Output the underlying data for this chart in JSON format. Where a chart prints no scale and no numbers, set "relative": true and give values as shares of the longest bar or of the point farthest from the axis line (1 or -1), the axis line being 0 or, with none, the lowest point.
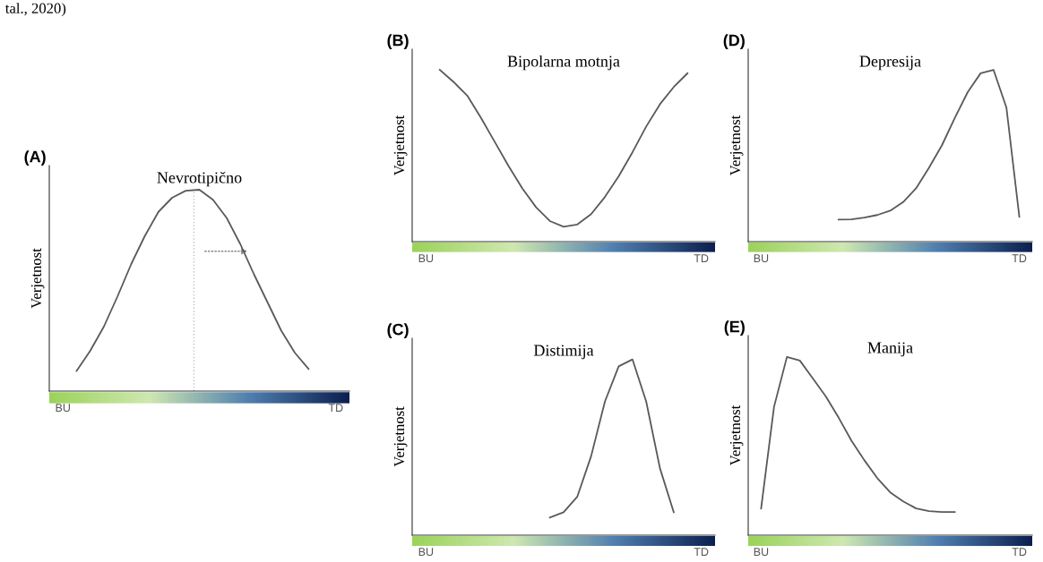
{
  "chart_data": [
    {
      "type": "line",
      "relative": true,
      "title": "Nevrotipično",
      "ylabel": "Verjetnost",
      "annotations": [
        "(A)",
        "tal., 2020)"
      ],
      "categories": [
        "BU",
        null,
        null,
        null,
        null,
        null,
        null,
        null,
        null,
        null,
        null,
        null,
        null,
        null,
        null,
        null,
        null,
        null,
        null,
        null,
        "TD"
      ],
      "grid": false,
      "legend": false,
      "marker": "none",
      "line_style": "solid",
      "tick_labels": "x",
      "series": [
        {
          "color": "#595959",
          "values": [
            null,
            0.1,
            0.2,
            0.32,
            0.47,
            0.63,
            0.77,
            0.89,
            0.96,
            0.995,
            1,
            0.95,
            0.86,
            0.73,
            0.58,
            0.44,
            0.3,
            0.19,
            0.11,
            null,
            null
          ]
        }
      ]
    },
    {
      "type": "line",
      "relative": true,
      "title": "Bipolarna motnja",
      "ylabel": "Verjetnost",
      "annotations": [
        "(B)"
      ],
      "categories": [
        "BU",
        null,
        null,
        null,
        null,
        null,
        null,
        null,
        null,
        null,
        null,
        null,
        null,
        null,
        null,
        null,
        null,
        null,
        null,
        null,
        "TD"
      ],
      "grid": false,
      "legend": false,
      "marker": "none",
      "line_style": "solid",
      "tick_labels": "x",
      "series": [
        {
          "color": "#595959",
          "values": [
            null,
            1,
            0.93,
            0.85,
            0.72,
            0.58,
            0.44,
            0.31,
            0.2,
            0.12,
            0.087,
            0.1,
            0.16,
            0.26,
            0.38,
            0.52,
            0.67,
            0.8,
            0.9,
            0.98,
            null
          ]
        }
      ]
    },
    {
      "type": "line",
      "relative": true,
      "title": "Depresija",
      "ylabel": "Verjetnost",
      "annotations": [
        "(D)"
      ],
      "categories": [
        "BU",
        null,
        null,
        null,
        null,
        null,
        null,
        null,
        null,
        null,
        null,
        null,
        null,
        null,
        null,
        null,
        null,
        null,
        null,
        null,
        "TD"
      ],
      "grid": false,
      "legend": false,
      "marker": "none",
      "line_style": "solid",
      "tick_labels": "x",
      "series": [
        {
          "color": "#595959",
          "values": [
            null,
            null,
            null,
            null,
            null,
            null,
            0.128,
            0.13,
            0.14,
            0.155,
            0.18,
            0.23,
            0.31,
            0.43,
            0.56,
            0.72,
            0.87,
            0.98,
            1,
            0.78,
            0.145
          ]
        }
      ]
    },
    {
      "type": "line",
      "relative": true,
      "title": "Distimija",
      "ylabel": "Verjetnost",
      "annotations": [
        "(C)"
      ],
      "categories": [
        "BU",
        null,
        null,
        null,
        null,
        null,
        null,
        null,
        null,
        null,
        null,
        null,
        null,
        null,
        null,
        null,
        null,
        null,
        null,
        null,
        "TD"
      ],
      "grid": false,
      "legend": false,
      "marker": "none",
      "line_style": "solid",
      "tick_labels": "x",
      "series": [
        {
          "color": "#595959",
          "values": [
            null,
            null,
            null,
            null,
            null,
            null,
            null,
            null,
            null,
            0.1,
            0.13,
            0.22,
            0.45,
            0.76,
            0.96,
            1,
            0.76,
            0.38,
            0.13,
            null,
            null
          ]
        }
      ]
    },
    {
      "type": "line",
      "relative": true,
      "title": "Manija",
      "ylabel": "Verjetnost",
      "annotations": [
        "(E)"
      ],
      "categories": [
        "BU",
        null,
        null,
        null,
        null,
        null,
        null,
        null,
        null,
        null,
        null,
        null,
        null,
        null,
        null,
        null,
        null,
        null,
        null,
        null,
        "TD"
      ],
      "grid": false,
      "legend": false,
      "marker": "none",
      "line_style": "solid",
      "tick_labels": "x",
      "series": [
        {
          "color": "#595959",
          "values": [
            0.15,
            0.72,
            1,
            0.98,
            0.88,
            0.78,
            0.66,
            0.53,
            0.42,
            0.32,
            0.24,
            0.19,
            0.15,
            0.135,
            0.13,
            0.13,
            null,
            null,
            null,
            null,
            null
          ]
        }
      ]
    }
  ]
}
